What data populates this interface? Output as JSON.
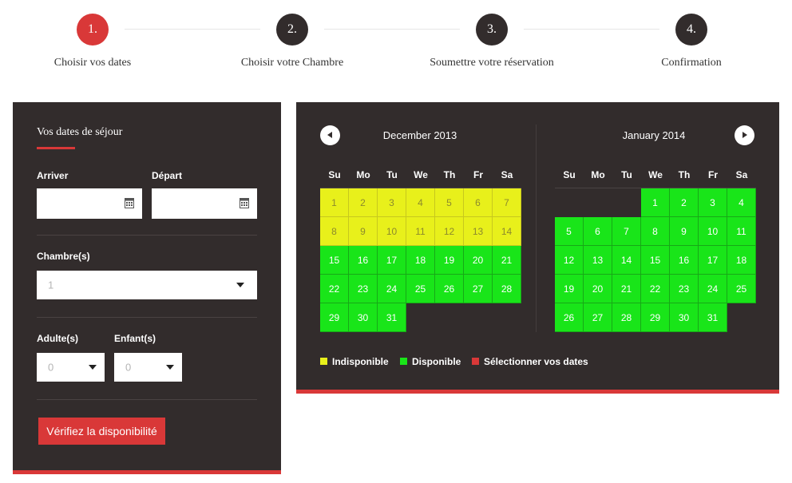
{
  "steps": [
    {
      "number": "1.",
      "label": "Choisir vos dates",
      "active": true
    },
    {
      "number": "2.",
      "label": "Choisir votre Chambre",
      "active": false
    },
    {
      "number": "3.",
      "label": "Soumettre votre réservation",
      "active": false
    },
    {
      "number": "4.",
      "label": "Confirmation",
      "active": false
    }
  ],
  "booking": {
    "title": "Vos dates de séjour",
    "arrive_label": "Arriver",
    "depart_label": "Départ",
    "arrive_value": "",
    "depart_value": "",
    "rooms_label": "Chambre(s)",
    "rooms_value": "1",
    "adults_label": "Adulte(s)",
    "adults_value": "0",
    "children_label": "Enfant(s)",
    "children_value": "0",
    "button_label": "Vérifiez la disponibilité"
  },
  "calendar": {
    "weekdays": [
      "Su",
      "Mo",
      "Tu",
      "We",
      "Th",
      "Fr",
      "Sa"
    ],
    "months": [
      {
        "title": "December 2013",
        "first_weekday": 0,
        "days_in_month": 31,
        "unavailable_days": [
          1,
          2,
          3,
          4,
          5,
          6,
          7,
          8,
          9,
          10,
          11,
          12,
          13,
          14
        ]
      },
      {
        "title": "January 2014",
        "first_weekday": 3,
        "days_in_month": 31,
        "unavailable_days": []
      }
    ],
    "legend": [
      {
        "label": "Indisponible",
        "color": "#e8f01b"
      },
      {
        "label": "Disponible",
        "color": "#19e519"
      },
      {
        "label": "Sélectionner vos dates",
        "color": "#d93838"
      }
    ]
  },
  "colors": {
    "accent": "#d93838",
    "panel": "#322c2c",
    "available": "#19e519",
    "unavailable": "#e8f01b"
  }
}
